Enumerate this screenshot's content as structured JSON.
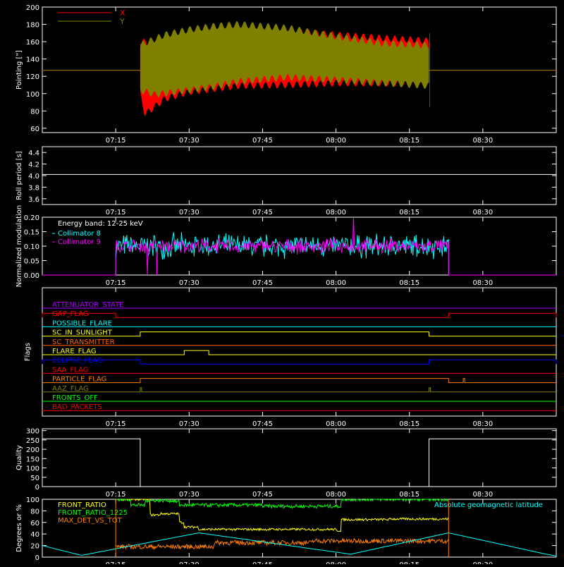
{
  "chart_data": [
    {
      "id": "pointing",
      "type": "line",
      "ylabel": "Pointing [\"]",
      "ylim": [
        55,
        200
      ],
      "yticks": [
        60,
        80,
        100,
        120,
        140,
        160,
        180,
        200
      ],
      "legend": {
        "placement": "top-left",
        "entries": [
          {
            "name": "X",
            "color": "#ff0000"
          },
          {
            "name": "Y",
            "color": "#808000"
          }
        ]
      },
      "series": [
        {
          "name": "X",
          "color": "#ff0000",
          "baseline": 127,
          "band_start": "07:20",
          "band_end": "08:19",
          "upper_envelope": [
            [
              0,
              165
            ],
            [
              3,
              160
            ],
            [
              10,
              170
            ],
            [
              20,
              172
            ],
            [
              30,
              176
            ],
            [
              40,
              172
            ],
            [
              50,
              168
            ],
            [
              59,
              165
            ]
          ],
          "lower_envelope": [
            [
              0,
              95
            ],
            [
              1,
              72
            ],
            [
              5,
              90
            ],
            [
              10,
              98
            ],
            [
              20,
              105
            ],
            [
              30,
              106
            ],
            [
              40,
              108
            ],
            [
              50,
              108
            ],
            [
              59,
              110
            ]
          ]
        },
        {
          "name": "Y",
          "color": "#808000",
          "baseline": 127,
          "band_start": "07:20",
          "band_end": "08:19",
          "upper_envelope": [
            [
              0,
              160
            ],
            [
              5,
              172
            ],
            [
              10,
              178
            ],
            [
              15,
              182
            ],
            [
              20,
              184
            ],
            [
              30,
              180
            ],
            [
              40,
              170
            ],
            [
              50,
              162
            ],
            [
              59,
              160
            ]
          ],
          "lower_envelope": [
            [
              0,
              100
            ],
            [
              3,
              95
            ],
            [
              10,
              100
            ],
            [
              15,
              104
            ],
            [
              20,
              110
            ],
            [
              30,
              115
            ],
            [
              40,
              112
            ],
            [
              50,
              108
            ],
            [
              59,
              105
            ]
          ]
        }
      ]
    },
    {
      "id": "roll",
      "type": "line",
      "ylabel": "Roll period [s]",
      "ylim": [
        3.5,
        4.5
      ],
      "yticks": [
        3.6,
        3.8,
        4.0,
        4.2,
        4.4
      ],
      "series": [
        {
          "name": "",
          "color": "#ffffff",
          "value": 4.02
        }
      ]
    },
    {
      "id": "modulation",
      "type": "line",
      "ylabel": "Normalized modulation",
      "ylim": [
        0,
        0.2
      ],
      "yticks": [
        0.0,
        0.05,
        0.1,
        0.15,
        0.2
      ],
      "annotation": "Energy band: 12-25 keV",
      "series": [
        {
          "name": "Collimator 8",
          "color": "#00ffff",
          "start": "07:15",
          "end": "08:23",
          "mean": 0.1,
          "spread": 0.05
        },
        {
          "name": "Collimator 9",
          "color": "#ff00ff",
          "start": "07:15",
          "end": "08:23",
          "mean": 0.1,
          "spread": 0.03
        }
      ]
    },
    {
      "id": "flags",
      "type": "line",
      "ylabel": "Flags",
      "flags": [
        {
          "name": "ATTENUATOR_STATE",
          "color": "#aa00ff",
          "high": []
        },
        {
          "name": "GAP_FLAG",
          "color": "#ff0000",
          "high": [
            [
              "07:00",
              "07:15"
            ],
            [
              "08:23",
              "08:45"
            ]
          ]
        },
        {
          "name": "POSSIBLE_FLARE",
          "color": "#00ffff",
          "high": []
        },
        {
          "name": "SC_IN_SUNLIGHT",
          "color": "#ffff00",
          "high": [
            [
              "07:20",
              "08:19"
            ]
          ]
        },
        {
          "name": "SC_TRANSMITTER",
          "color": "#ff6000",
          "high": []
        },
        {
          "name": "FLARE_FLAG",
          "color": "#ffff00",
          "high": [
            [
              "07:29",
              "07:34"
            ]
          ]
        },
        {
          "name": "ECLIPSE_FLAG",
          "color": "#0000ff",
          "high": [
            [
              "07:00",
              "07:20"
            ],
            [
              "08:19",
              "08:45"
            ]
          ]
        },
        {
          "name": "SAA_FLAG",
          "color": "#ff0000",
          "high": []
        },
        {
          "name": "PARTICLE_FLAG",
          "color": "#ff8000",
          "high": [
            [
              "07:20",
              "08:23"
            ],
            [
              "08:26",
              "08:26.3"
            ]
          ]
        },
        {
          "name": "AAZ_FLAG",
          "color": "#808000",
          "high": [
            [
              "07:20",
              "07:20.3"
            ],
            [
              "08:19",
              "08:19.3"
            ]
          ]
        },
        {
          "name": "FRONTS_OFF",
          "color": "#00ff00",
          "high": []
        },
        {
          "name": "BAD_PACKETS",
          "color": "#ff0000",
          "high": []
        }
      ]
    },
    {
      "id": "quality",
      "type": "line",
      "ylabel": "Quality",
      "ylim": [
        0,
        310
      ],
      "yticks": [
        0,
        50,
        100,
        150,
        200,
        250,
        300
      ],
      "series": [
        {
          "name": "",
          "color": "#ffffff",
          "segments": [
            [
              [
                "07:00",
                256
              ],
              [
                "07:20",
                256
              ],
              [
                "07:20",
                0
              ],
              [
                "08:19",
                0
              ],
              [
                "08:19",
                256
              ],
              [
                "08:45",
                256
              ]
            ]
          ]
        }
      ]
    },
    {
      "id": "ratios",
      "type": "line",
      "ylabel": "Degrees or %",
      "ylim": [
        0,
        100
      ],
      "yticks": [
        0,
        20,
        40,
        60,
        80,
        100
      ],
      "series": [
        {
          "name": "FRONT_RATIO",
          "color": "#ffff00",
          "start": "07:15",
          "end": "08:23",
          "levels": [
            [
              0,
              100
            ],
            [
              7,
              73
            ],
            [
              9,
              75
            ],
            [
              12,
              75
            ],
            [
              13,
              60
            ],
            [
              14,
              52
            ],
            [
              17,
              48
            ],
            [
              45,
              46
            ],
            [
              46,
              65
            ],
            [
              56,
              66
            ],
            [
              68,
              66
            ]
          ]
        },
        {
          "name": "FRONT_RATIO_1225",
          "color": "#00ff00",
          "start": "07:15",
          "end": "08:23",
          "levels": [
            [
              0,
              100
            ],
            [
              3,
              90
            ],
            [
              6,
              98
            ],
            [
              12,
              96
            ],
            [
              13,
              90
            ],
            [
              30,
              88
            ],
            [
              45,
              88
            ],
            [
              46,
              100
            ],
            [
              56,
              100
            ],
            [
              68,
              100
            ]
          ]
        },
        {
          "name": "MAX_DET_VS_TOT",
          "color": "#ff8000",
          "start": "07:15",
          "end": "08:23",
          "levels": [
            [
              0,
              18
            ],
            [
              20,
              25
            ],
            [
              40,
              28
            ],
            [
              60,
              28
            ],
            [
              68,
              30
            ]
          ]
        },
        {
          "name": "Absolute geomagnetic latitude",
          "color": "#00ffff",
          "curve": [
            [
              "07:00",
              20
            ],
            [
              "07:08",
              3
            ],
            [
              "07:32",
              42
            ],
            [
              "08:03",
              5
            ],
            [
              "08:23",
              42
            ],
            [
              "08:43",
              5
            ],
            [
              "08:45",
              2
            ]
          ]
        }
      ]
    }
  ],
  "x_axis": {
    "start": "07:00",
    "end": "08:45",
    "ticks": [
      "07:15",
      "07:30",
      "07:45",
      "08:00",
      "08:15",
      "08:30"
    ]
  }
}
